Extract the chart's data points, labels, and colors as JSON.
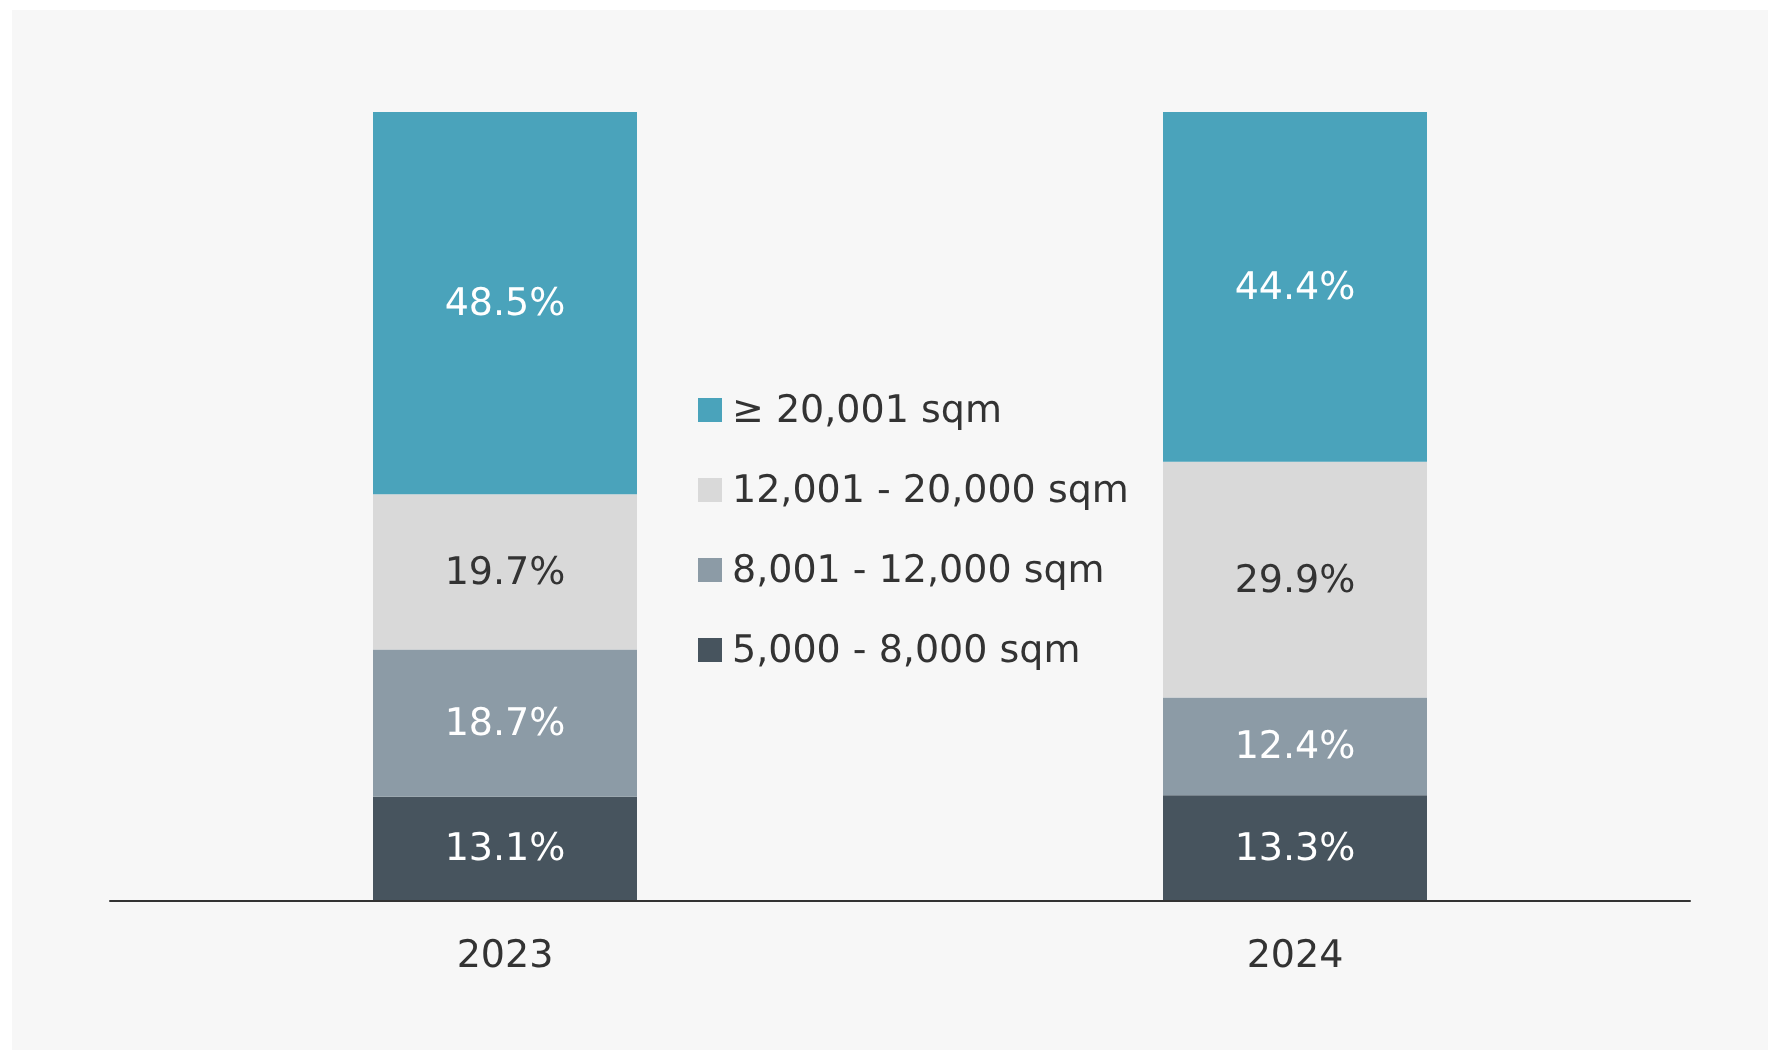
{
  "chart_data": {
    "type": "bar",
    "stacked": true,
    "categories": [
      "2023",
      "2024"
    ],
    "tick_labels": "x",
    "legend": "center",
    "series": [
      {
        "name": "5,000 - 8,000 sqm",
        "color": "#47545e",
        "values": [
          13.1,
          13.3
        ],
        "value_labels": [
          "13.1%",
          "13.3%"
        ]
      },
      {
        "name": "8,001 - 12,000 sqm",
        "color": "#8c9ba6",
        "values": [
          18.7,
          12.4
        ],
        "value_labels": [
          "18.7%",
          "12.4%"
        ]
      },
      {
        "name": "12,001 - 20,000 sqm",
        "color": "#d9d9d9",
        "values": [
          19.7,
          29.9
        ],
        "value_labels": [
          "19.7%",
          "29.9%"
        ]
      },
      {
        "name": "≥ 20,001 sqm",
        "color": "#4aa3bb",
        "values": [
          48.5,
          44.4
        ],
        "value_labels": [
          "48.5%",
          "44.4%"
        ]
      }
    ]
  }
}
